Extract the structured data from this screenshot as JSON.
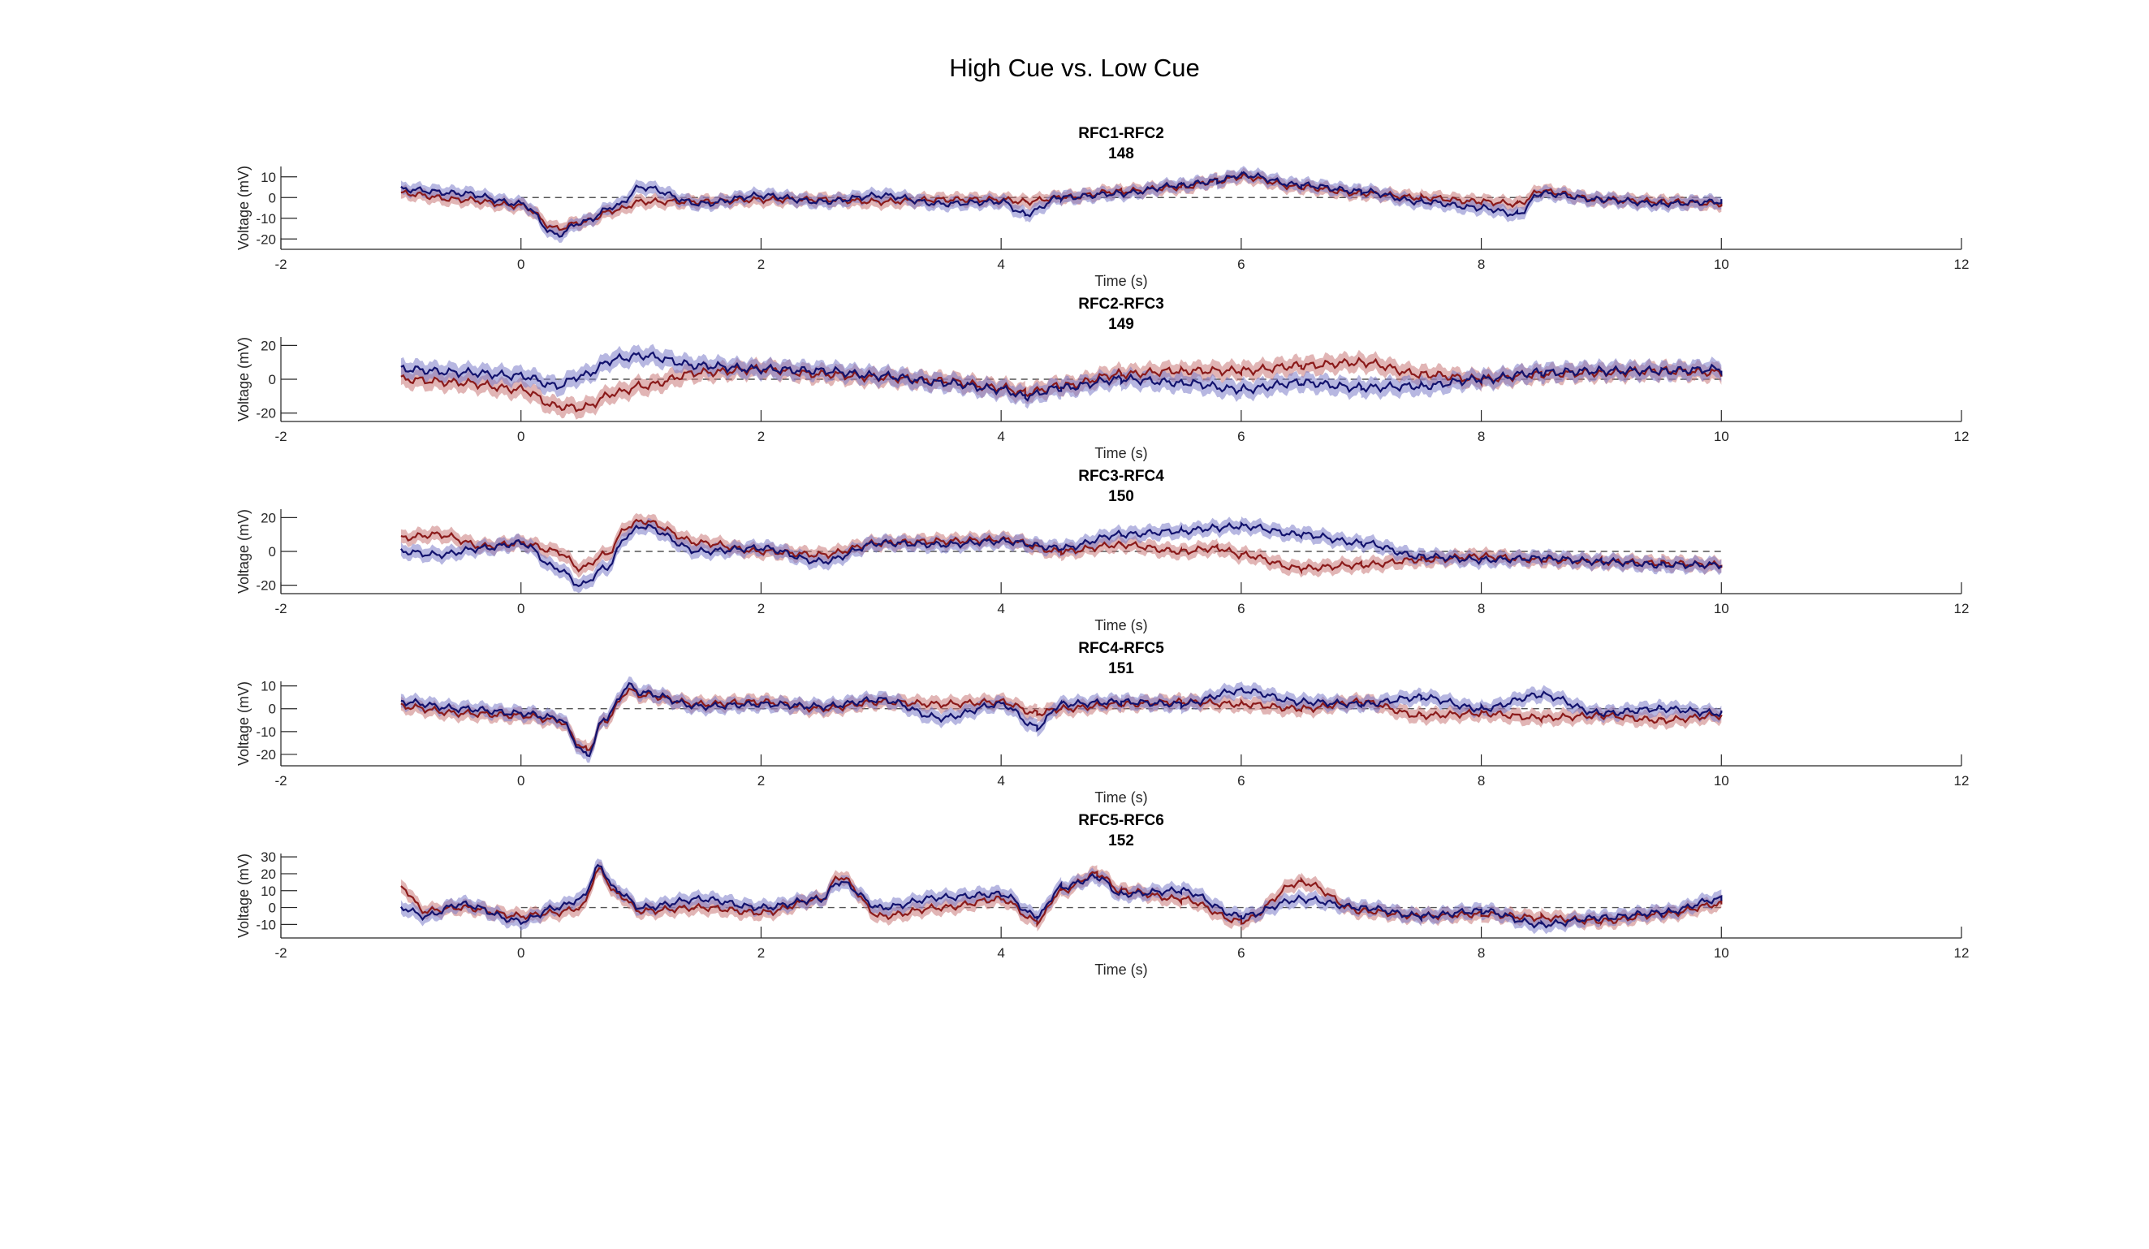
{
  "figure": {
    "title": "High Cue vs. Low Cue"
  },
  "colors": {
    "high_line": "#8b1a1a",
    "high_band": "#c87878",
    "low_line": "#12126e",
    "low_band": "#7c7cc8",
    "zero_line": "#555555",
    "axis": "#262626"
  },
  "chart_data": [
    {
      "type": "line",
      "title": "RFC1-RFC2",
      "subtitle": "148",
      "xlabel": "Time (s)",
      "ylabel": "Voltage (mV)",
      "xlim": [
        -2,
        12
      ],
      "ylim": [
        -25,
        15
      ],
      "xticks": [
        -2,
        0,
        2,
        4,
        6,
        8,
        10,
        12
      ],
      "yticks": [
        -20,
        -10,
        0,
        10
      ],
      "band_halfwidth": 3,
      "x": [
        -1.0,
        -0.5,
        0.0,
        0.3,
        0.5,
        0.8,
        1.0,
        1.5,
        2.0,
        2.5,
        3.0,
        3.5,
        4.0,
        4.2,
        4.5,
        5.0,
        5.5,
        5.8,
        6.0,
        6.5,
        7.0,
        7.5,
        8.0,
        8.3,
        8.5,
        9.0,
        9.5,
        10.0
      ],
      "series": [
        {
          "values": [
            2,
            -1,
            -4,
            -15,
            -12,
            -6,
            -2,
            -2,
            -1,
            -1,
            -2,
            -1,
            -1,
            -2,
            0,
            3,
            5,
            8,
            10,
            5,
            2,
            0,
            -2,
            -3,
            3,
            -1,
            -2,
            -3
          ]
        },
        {
          "values": [
            4,
            2,
            -3,
            -18,
            -12,
            -4,
            5,
            -3,
            1,
            -2,
            1,
            -3,
            -2,
            -8,
            0,
            2,
            6,
            8,
            11,
            6,
            3,
            -2,
            -5,
            -8,
            2,
            -1,
            -3,
            -2
          ]
        }
      ]
    },
    {
      "type": "line",
      "title": "RFC2-RFC3",
      "subtitle": "149",
      "xlabel": "Time (s)",
      "ylabel": "Voltage (mV)",
      "xlim": [
        -2,
        12
      ],
      "ylim": [
        -25,
        25
      ],
      "xticks": [
        -2,
        0,
        2,
        4,
        6,
        8,
        10,
        12
      ],
      "yticks": [
        -20,
        0,
        20
      ],
      "band_halfwidth": 5,
      "x": [
        -1.0,
        -0.5,
        0.0,
        0.3,
        0.5,
        0.8,
        1.0,
        1.5,
        2.0,
        2.5,
        3.0,
        3.5,
        4.0,
        4.2,
        4.5,
        5.0,
        5.5,
        6.0,
        6.5,
        7.0,
        7.5,
        8.0,
        8.5,
        9.0,
        9.5,
        10.0
      ],
      "series": [
        {
          "values": [
            0,
            -2,
            -6,
            -16,
            -17,
            -8,
            -4,
            4,
            6,
            3,
            1,
            -1,
            -5,
            -8,
            -4,
            3,
            5,
            5,
            8,
            10,
            3,
            0,
            3,
            4,
            5,
            4
          ]
        },
        {
          "values": [
            6,
            4,
            2,
            -4,
            2,
            12,
            14,
            8,
            6,
            5,
            2,
            -2,
            -6,
            -10,
            -5,
            0,
            -2,
            -6,
            -2,
            -5,
            -4,
            0,
            4,
            5,
            5,
            6
          ]
        }
      ]
    },
    {
      "type": "line",
      "title": "RFC3-RFC4",
      "subtitle": "150",
      "xlabel": "Time (s)",
      "ylabel": "Voltage (mV)",
      "xlim": [
        -2,
        12
      ],
      "ylim": [
        -25,
        25
      ],
      "xticks": [
        -2,
        0,
        2,
        4,
        6,
        8,
        10,
        12
      ],
      "yticks": [
        -20,
        0,
        20
      ],
      "band_halfwidth": 4,
      "x": [
        -1.0,
        -0.7,
        -0.3,
        0.0,
        0.3,
        0.5,
        0.7,
        0.9,
        1.0,
        1.5,
        2.0,
        2.5,
        3.0,
        3.5,
        4.0,
        4.5,
        5.0,
        5.5,
        5.8,
        6.0,
        6.5,
        7.0,
        7.5,
        8.0,
        8.5,
        9.0,
        9.5,
        10.0
      ],
      "series": [
        {
          "values": [
            8,
            10,
            3,
            5,
            0,
            -10,
            -2,
            15,
            18,
            5,
            0,
            -2,
            5,
            6,
            7,
            0,
            4,
            0,
            2,
            -2,
            -10,
            -8,
            -5,
            -3,
            -5,
            -6,
            -7,
            -8
          ]
        },
        {
          "values": [
            0,
            -2,
            2,
            5,
            -10,
            -20,
            -10,
            10,
            15,
            0,
            2,
            -6,
            5,
            4,
            6,
            2,
            10,
            12,
            14,
            15,
            10,
            5,
            -3,
            -5,
            -4,
            -6,
            -8,
            -8
          ]
        }
      ]
    },
    {
      "type": "line",
      "title": "RFC4-RFC5",
      "subtitle": "151",
      "xlabel": "Time (s)",
      "ylabel": "Voltage (mV)",
      "xlim": [
        -2,
        12
      ],
      "ylim": [
        -25,
        12
      ],
      "xticks": [
        -2,
        0,
        2,
        4,
        6,
        8,
        10,
        12
      ],
      "yticks": [
        -20,
        -10,
        0,
        10
      ],
      "band_halfwidth": 3,
      "x": [
        -1.0,
        -0.5,
        0.0,
        0.3,
        0.55,
        0.7,
        0.9,
        1.0,
        1.5,
        2.0,
        2.5,
        3.0,
        3.5,
        4.0,
        4.3,
        4.5,
        5.0,
        5.5,
        6.0,
        6.5,
        7.0,
        7.5,
        8.0,
        8.5,
        9.0,
        9.5,
        10.0
      ],
      "series": [
        {
          "values": [
            1,
            -2,
            -3,
            -5,
            -18,
            -5,
            8,
            6,
            2,
            3,
            0,
            3,
            2,
            3,
            -2,
            0,
            2,
            3,
            2,
            0,
            3,
            -3,
            -2,
            -4,
            -3,
            -5,
            -3
          ]
        },
        {
          "values": [
            3,
            0,
            -2,
            -4,
            -20,
            -4,
            10,
            7,
            1,
            2,
            1,
            4,
            -4,
            2,
            -8,
            2,
            3,
            2,
            8,
            3,
            2,
            5,
            0,
            6,
            -2,
            0,
            -2
          ]
        }
      ]
    },
    {
      "type": "line",
      "title": "RFC5-RFC6",
      "subtitle": "152",
      "xlabel": "Time (s)",
      "ylabel": "Voltage (mV)",
      "xlim": [
        -2,
        12
      ],
      "ylim": [
        -18,
        32
      ],
      "xticks": [
        -2,
        0,
        2,
        4,
        6,
        8,
        10,
        12
      ],
      "yticks": [
        -10,
        0,
        10,
        20,
        30
      ],
      "band_halfwidth": 4,
      "x": [
        -1.0,
        -0.8,
        -0.5,
        0.0,
        0.3,
        0.5,
        0.65,
        0.8,
        1.0,
        1.5,
        2.0,
        2.5,
        2.65,
        3.0,
        3.5,
        4.0,
        4.3,
        4.5,
        4.8,
        5.0,
        5.5,
        6.0,
        6.5,
        7.0,
        7.5,
        8.0,
        8.5,
        9.0,
        9.5,
        10.0
      ],
      "series": [
        {
          "values": [
            12,
            -2,
            0,
            -5,
            -3,
            0,
            22,
            8,
            -2,
            0,
            -3,
            5,
            18,
            -5,
            0,
            5,
            -8,
            10,
            20,
            10,
            5,
            -8,
            15,
            -2,
            -5,
            -4,
            -6,
            -8,
            -4,
            2
          ]
        },
        {
          "values": [
            0,
            -5,
            2,
            -8,
            0,
            5,
            24,
            10,
            0,
            5,
            0,
            5,
            15,
            0,
            6,
            8,
            -5,
            12,
            18,
            8,
            10,
            -5,
            5,
            0,
            -5,
            -2,
            -10,
            -6,
            -3,
            5
          ]
        }
      ]
    }
  ]
}
